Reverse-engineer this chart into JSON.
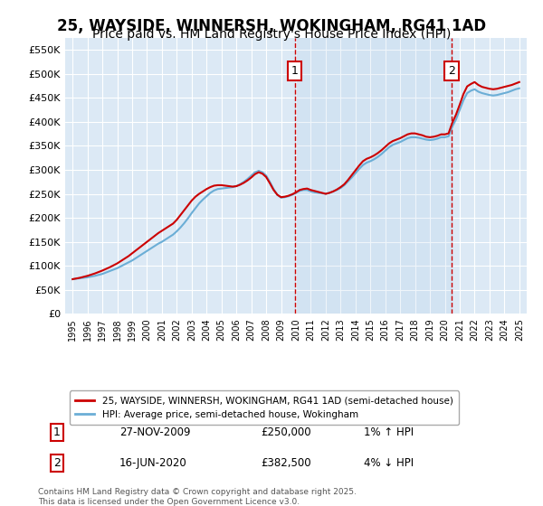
{
  "title": "25, WAYSIDE, WINNERSH, WOKINGHAM, RG41 1AD",
  "subtitle": "Price paid vs. HM Land Registry's House Price Index (HPI)",
  "title_fontsize": 12,
  "subtitle_fontsize": 10,
  "background_color": "#ffffff",
  "plot_bg_color": "#dce9f5",
  "grid_color": "#ffffff",
  "ylim": [
    0,
    575000
  ],
  "yticks": [
    0,
    50000,
    100000,
    150000,
    200000,
    250000,
    300000,
    350000,
    400000,
    450000,
    500000,
    550000
  ],
  "ytick_labels": [
    "£0",
    "£50K",
    "£100K",
    "£150K",
    "£200K",
    "£250K",
    "£300K",
    "£350K",
    "£400K",
    "£450K",
    "£500K",
    "£550K"
  ],
  "xlim_start": 1994.5,
  "xlim_end": 2025.5,
  "xtick_years": [
    1995,
    1996,
    1997,
    1998,
    1999,
    2000,
    2001,
    2002,
    2003,
    2004,
    2005,
    2006,
    2007,
    2008,
    2009,
    2010,
    2011,
    2012,
    2013,
    2014,
    2015,
    2016,
    2017,
    2018,
    2019,
    2020,
    2021,
    2022,
    2023,
    2024,
    2025
  ],
  "sale1_x": 2009.91,
  "sale1_y": 250000,
  "sale1_label": "1",
  "sale1_date": "27-NOV-2009",
  "sale1_price": "£250,000",
  "sale1_hpi": "1% ↑ HPI",
  "sale2_x": 2020.46,
  "sale2_y": 382500,
  "sale2_label": "2",
  "sale2_date": "16-JUN-2020",
  "sale2_price": "£382,500",
  "sale2_hpi": "4% ↓ HPI",
  "annotation_box_color": "#cc0000",
  "vline_color": "#cc0000",
  "shade_color": "#dce9f5",
  "legend_label_red": "25, WAYSIDE, WINNERSH, WOKINGHAM, RG41 1AD (semi-detached house)",
  "legend_label_blue": "HPI: Average price, semi-detached house, Wokingham",
  "footnote": "Contains HM Land Registry data © Crown copyright and database right 2025.\nThis data is licensed under the Open Government Licence v3.0.",
  "hpi_line_color": "#6baed6",
  "price_line_color": "#cc0000",
  "hpi_data_x": [
    1995.0,
    1995.25,
    1995.5,
    1995.75,
    1996.0,
    1996.25,
    1996.5,
    1996.75,
    1997.0,
    1997.25,
    1997.5,
    1997.75,
    1998.0,
    1998.25,
    1998.5,
    1998.75,
    1999.0,
    1999.25,
    1999.5,
    1999.75,
    2000.0,
    2000.25,
    2000.5,
    2000.75,
    2001.0,
    2001.25,
    2001.5,
    2001.75,
    2002.0,
    2002.25,
    2002.5,
    2002.75,
    2003.0,
    2003.25,
    2003.5,
    2003.75,
    2004.0,
    2004.25,
    2004.5,
    2004.75,
    2005.0,
    2005.25,
    2005.5,
    2005.75,
    2006.0,
    2006.25,
    2006.5,
    2006.75,
    2007.0,
    2007.25,
    2007.5,
    2007.75,
    2008.0,
    2008.25,
    2008.5,
    2008.75,
    2009.0,
    2009.25,
    2009.5,
    2009.75,
    2010.0,
    2010.25,
    2010.5,
    2010.75,
    2011.0,
    2011.25,
    2011.5,
    2011.75,
    2012.0,
    2012.25,
    2012.5,
    2012.75,
    2013.0,
    2013.25,
    2013.5,
    2013.75,
    2014.0,
    2014.25,
    2014.5,
    2014.75,
    2015.0,
    2015.25,
    2015.5,
    2015.75,
    2016.0,
    2016.25,
    2016.5,
    2016.75,
    2017.0,
    2017.25,
    2017.5,
    2017.75,
    2018.0,
    2018.25,
    2018.5,
    2018.75,
    2019.0,
    2019.25,
    2019.5,
    2019.75,
    2020.0,
    2020.25,
    2020.5,
    2020.75,
    2021.0,
    2021.25,
    2021.5,
    2021.75,
    2022.0,
    2022.25,
    2022.5,
    2022.75,
    2023.0,
    2023.25,
    2023.5,
    2023.75,
    2024.0,
    2024.25,
    2024.5,
    2024.75,
    2025.0
  ],
  "hpi_data_y": [
    72000,
    73000,
    74000,
    75000,
    76000,
    77500,
    79000,
    81000,
    83000,
    86000,
    89000,
    92000,
    95000,
    99000,
    103000,
    107000,
    111000,
    116000,
    121000,
    126000,
    131000,
    136000,
    141000,
    146000,
    150000,
    155000,
    160000,
    165000,
    172000,
    180000,
    189000,
    199000,
    210000,
    220000,
    230000,
    238000,
    245000,
    252000,
    257000,
    260000,
    261000,
    262000,
    263000,
    264000,
    266000,
    270000,
    275000,
    281000,
    288000,
    295000,
    298000,
    295000,
    288000,
    275000,
    260000,
    248000,
    242000,
    243000,
    245000,
    248000,
    252000,
    256000,
    258000,
    258000,
    255000,
    253000,
    252000,
    251000,
    250000,
    252000,
    255000,
    258000,
    262000,
    268000,
    276000,
    284000,
    293000,
    302000,
    310000,
    315000,
    318000,
    322000,
    327000,
    333000,
    340000,
    347000,
    352000,
    355000,
    358000,
    362000,
    366000,
    368000,
    368000,
    367000,
    365000,
    363000,
    362000,
    363000,
    365000,
    368000,
    368000,
    370000,
    390000,
    405000,
    425000,
    445000,
    460000,
    465000,
    468000,
    463000,
    460000,
    458000,
    456000,
    455000,
    456000,
    458000,
    460000,
    462000,
    465000,
    468000,
    470000
  ],
  "price_data_x": [
    1995.0,
    1995.25,
    1995.5,
    1995.75,
    1996.0,
    1996.25,
    1996.5,
    1996.75,
    1997.0,
    1997.25,
    1997.5,
    1997.75,
    1998.0,
    1998.25,
    1998.5,
    1998.75,
    1999.0,
    1999.25,
    1999.5,
    1999.75,
    2000.0,
    2000.25,
    2000.5,
    2000.75,
    2001.0,
    2001.25,
    2001.5,
    2001.75,
    2002.0,
    2002.25,
    2002.5,
    2002.75,
    2003.0,
    2003.25,
    2003.5,
    2003.75,
    2004.0,
    2004.25,
    2004.5,
    2004.75,
    2005.0,
    2005.25,
    2005.5,
    2005.75,
    2006.0,
    2006.25,
    2006.5,
    2006.75,
    2007.0,
    2007.25,
    2007.5,
    2007.75,
    2008.0,
    2008.25,
    2008.5,
    2008.75,
    2009.0,
    2009.25,
    2009.5,
    2009.75,
    2010.0,
    2010.25,
    2010.5,
    2010.75,
    2011.0,
    2011.25,
    2011.5,
    2011.75,
    2012.0,
    2012.25,
    2012.5,
    2012.75,
    2013.0,
    2013.25,
    2013.5,
    2013.75,
    2014.0,
    2014.25,
    2014.5,
    2014.75,
    2015.0,
    2015.25,
    2015.5,
    2015.75,
    2016.0,
    2016.25,
    2016.5,
    2016.75,
    2017.0,
    2017.25,
    2017.5,
    2017.75,
    2018.0,
    2018.25,
    2018.5,
    2018.75,
    2019.0,
    2019.25,
    2019.5,
    2019.75,
    2020.0,
    2020.25,
    2020.5,
    2020.75,
    2021.0,
    2021.25,
    2021.5,
    2021.75,
    2022.0,
    2022.25,
    2022.5,
    2022.75,
    2023.0,
    2023.25,
    2023.5,
    2023.75,
    2024.0,
    2024.25,
    2024.5,
    2024.75,
    2025.0
  ],
  "price_data_y": [
    72000,
    73500,
    75000,
    77000,
    79000,
    81500,
    84000,
    87000,
    90000,
    93500,
    97000,
    101000,
    105000,
    110000,
    115000,
    120000,
    126000,
    132000,
    138000,
    144000,
    150000,
    156000,
    162000,
    168000,
    173000,
    178000,
    183000,
    188000,
    196000,
    206000,
    216000,
    226000,
    236000,
    244000,
    250000,
    255000,
    260000,
    264000,
    267000,
    268000,
    268000,
    267000,
    266000,
    265000,
    266000,
    269000,
    273000,
    278000,
    284000,
    291000,
    295000,
    292000,
    285000,
    272000,
    258000,
    248000,
    243000,
    244000,
    246000,
    249000,
    253000,
    258000,
    260000,
    261000,
    258000,
    256000,
    254000,
    252000,
    250000,
    252000,
    255000,
    259000,
    264000,
    270000,
    279000,
    289000,
    299000,
    309000,
    318000,
    323000,
    326000,
    330000,
    335000,
    341000,
    348000,
    355000,
    360000,
    363000,
    366000,
    370000,
    374000,
    376000,
    376000,
    374000,
    372000,
    369000,
    368000,
    369000,
    371000,
    374000,
    374000,
    376000,
    398000,
    415000,
    436000,
    458000,
    474000,
    479000,
    483000,
    477000,
    473000,
    471000,
    469000,
    468000,
    469000,
    471000,
    473000,
    475000,
    477000,
    480000,
    483000
  ]
}
